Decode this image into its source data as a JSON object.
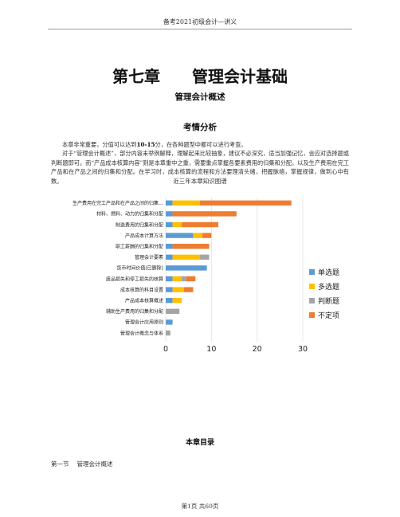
{
  "header": "备考2021初级会计—讲义",
  "chapter_title": "第七章　　管理会计基础",
  "section_title": "管理会计概述",
  "analysis_title": "考情分析",
  "paragraphs": [
    {
      "pre": "本章非常重要，分值可以达到",
      "bold": "10-15",
      "post": "分，在各种题型中都可以进行考查。"
    },
    {
      "pre": "对于“管理会计概述”，部分内容未举例解释，理解起来比较抽象，建议不必深究，适当加强记忆，会应对选择题或判断题即可。而“产品成本核算内容”则是本章重中之重，需要重点掌握各要素费用的归集和分配，以及生产费用在完工产品和在产品之间的归集和分配。在学习时，成本核算的流程和方法要理清头绪，把握脉络，掌握规律，做到心中有数。",
      "bold": "",
      "post": ""
    }
  ],
  "chart_data": {
    "type": "bar",
    "orientation": "horizontal",
    "stacked": true,
    "title": "近三年本章知识图谱",
    "categories": [
      "生产费用在完工产品和在产品之间的归集…",
      "材料、燃料、动力的归集和分配",
      "制造费用的归集和分配",
      "产品成本计算方法",
      "职工薪酬的归集和分配",
      "管理会计要素",
      "货币时间价值(已删除)",
      "废品损失和停工损失的核算",
      "成本核算的科目设置",
      "产品成本核算概述",
      "辅助生产费用的归集和分配",
      "管理会计应用原则",
      "管理会计概念与体系"
    ],
    "series": [
      {
        "name": "单选题",
        "color": "#5B9BD5",
        "values": [
          1.5,
          1.5,
          1.5,
          6,
          1.5,
          1.5,
          9,
          1.5,
          1.5,
          1.5,
          0,
          1.5,
          0
        ]
      },
      {
        "name": "多选题",
        "color": "#FFC000",
        "values": [
          6,
          0,
          2,
          2,
          0,
          6,
          0,
          2,
          2.5,
          2,
          0,
          0,
          0
        ]
      },
      {
        "name": "判断题",
        "color": "#A5A5A5",
        "values": [
          0,
          0,
          0,
          0,
          0,
          2,
          0,
          1,
          0,
          0,
          3,
          0,
          1
        ]
      },
      {
        "name": "不定项",
        "color": "#ED7D31",
        "values": [
          20,
          14,
          8,
          2,
          8,
          0,
          0,
          2,
          2,
          0,
          0,
          0,
          0
        ]
      }
    ],
    "xlim": [
      0,
      30
    ],
    "xticks": [
      0,
      10,
      20,
      30
    ],
    "legend": "right"
  },
  "toc_title": "本章目录",
  "toc": [
    {
      "num": "第一节",
      "label": "管理会计概述"
    }
  ],
  "footer": "第1页 共60页"
}
